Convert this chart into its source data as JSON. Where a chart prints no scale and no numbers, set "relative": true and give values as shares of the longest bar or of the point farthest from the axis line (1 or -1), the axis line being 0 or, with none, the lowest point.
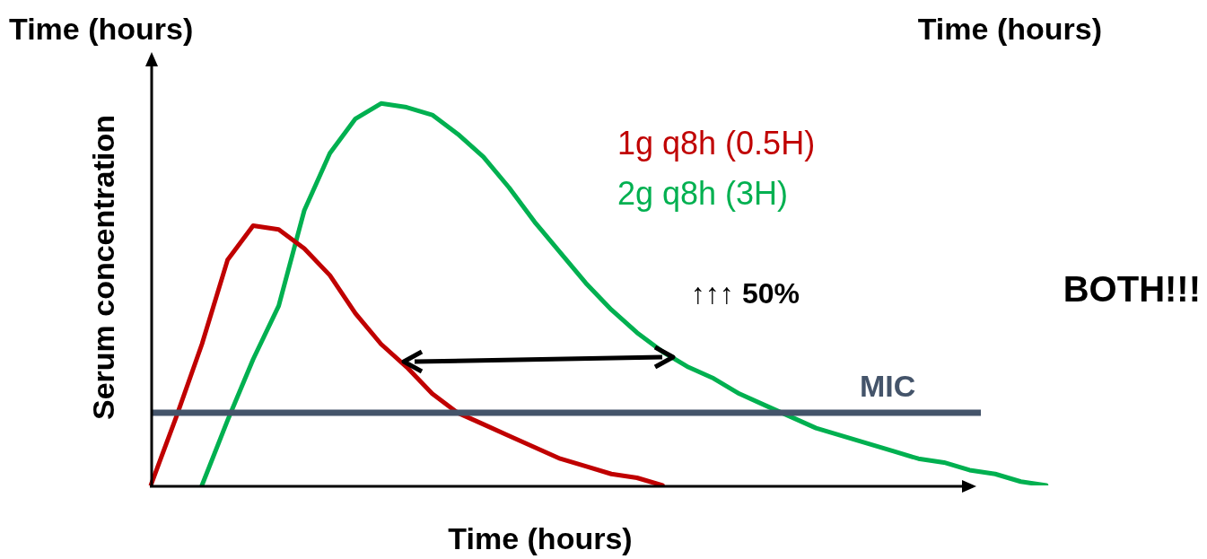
{
  "chart_data": {
    "type": "line",
    "relative": true,
    "xlabel": "Time (hours)",
    "ylabel": "Serum concentration",
    "annotations": [
      "Time (hours)",
      "Time (hours)",
      "↑↑↑ 50%",
      "BOTH!!!"
    ],
    "categories": [
      null,
      null,
      null,
      null,
      null,
      null,
      null,
      null,
      null,
      null,
      null,
      null,
      null,
      null,
      null,
      null,
      null,
      null,
      null,
      null,
      null,
      null,
      null,
      null,
      null,
      null,
      null,
      null,
      null,
      null,
      null,
      null,
      null,
      null,
      null,
      null
    ],
    "series": [
      {
        "name": "1g q8h (0.5H)",
        "color": "#c00000",
        "values": [
          0,
          0.18,
          0.37,
          0.59,
          0.68,
          0.67,
          0.62,
          0.55,
          0.45,
          0.37,
          0.31,
          0.24,
          0.19,
          0.16,
          0.13,
          0.1,
          0.07,
          0.05,
          0.03,
          0.02,
          0,
          null,
          null,
          null,
          null,
          null,
          null,
          null,
          null,
          null,
          null,
          null,
          null,
          null,
          null,
          null
        ]
      },
      {
        "name": "2g q8h (3H)",
        "color": "#00b050",
        "values": [
          null,
          null,
          0,
          0.17,
          0.33,
          0.47,
          0.72,
          0.87,
          0.96,
          1,
          0.99,
          0.97,
          0.92,
          0.86,
          0.78,
          0.69,
          0.61,
          0.53,
          0.46,
          0.4,
          0.35,
          0.31,
          0.28,
          0.24,
          0.21,
          0.18,
          0.15,
          0.13,
          0.11,
          0.09,
          0.07,
          0.06,
          0.04,
          0.03,
          0.01,
          0
        ]
      }
    ],
    "ref_lines": [
      {
        "axis": "y",
        "value": 0.19,
        "label": "MIC",
        "color": "#44546a"
      }
    ],
    "marker": "none",
    "line_style": "solid",
    "legend": false
  }
}
